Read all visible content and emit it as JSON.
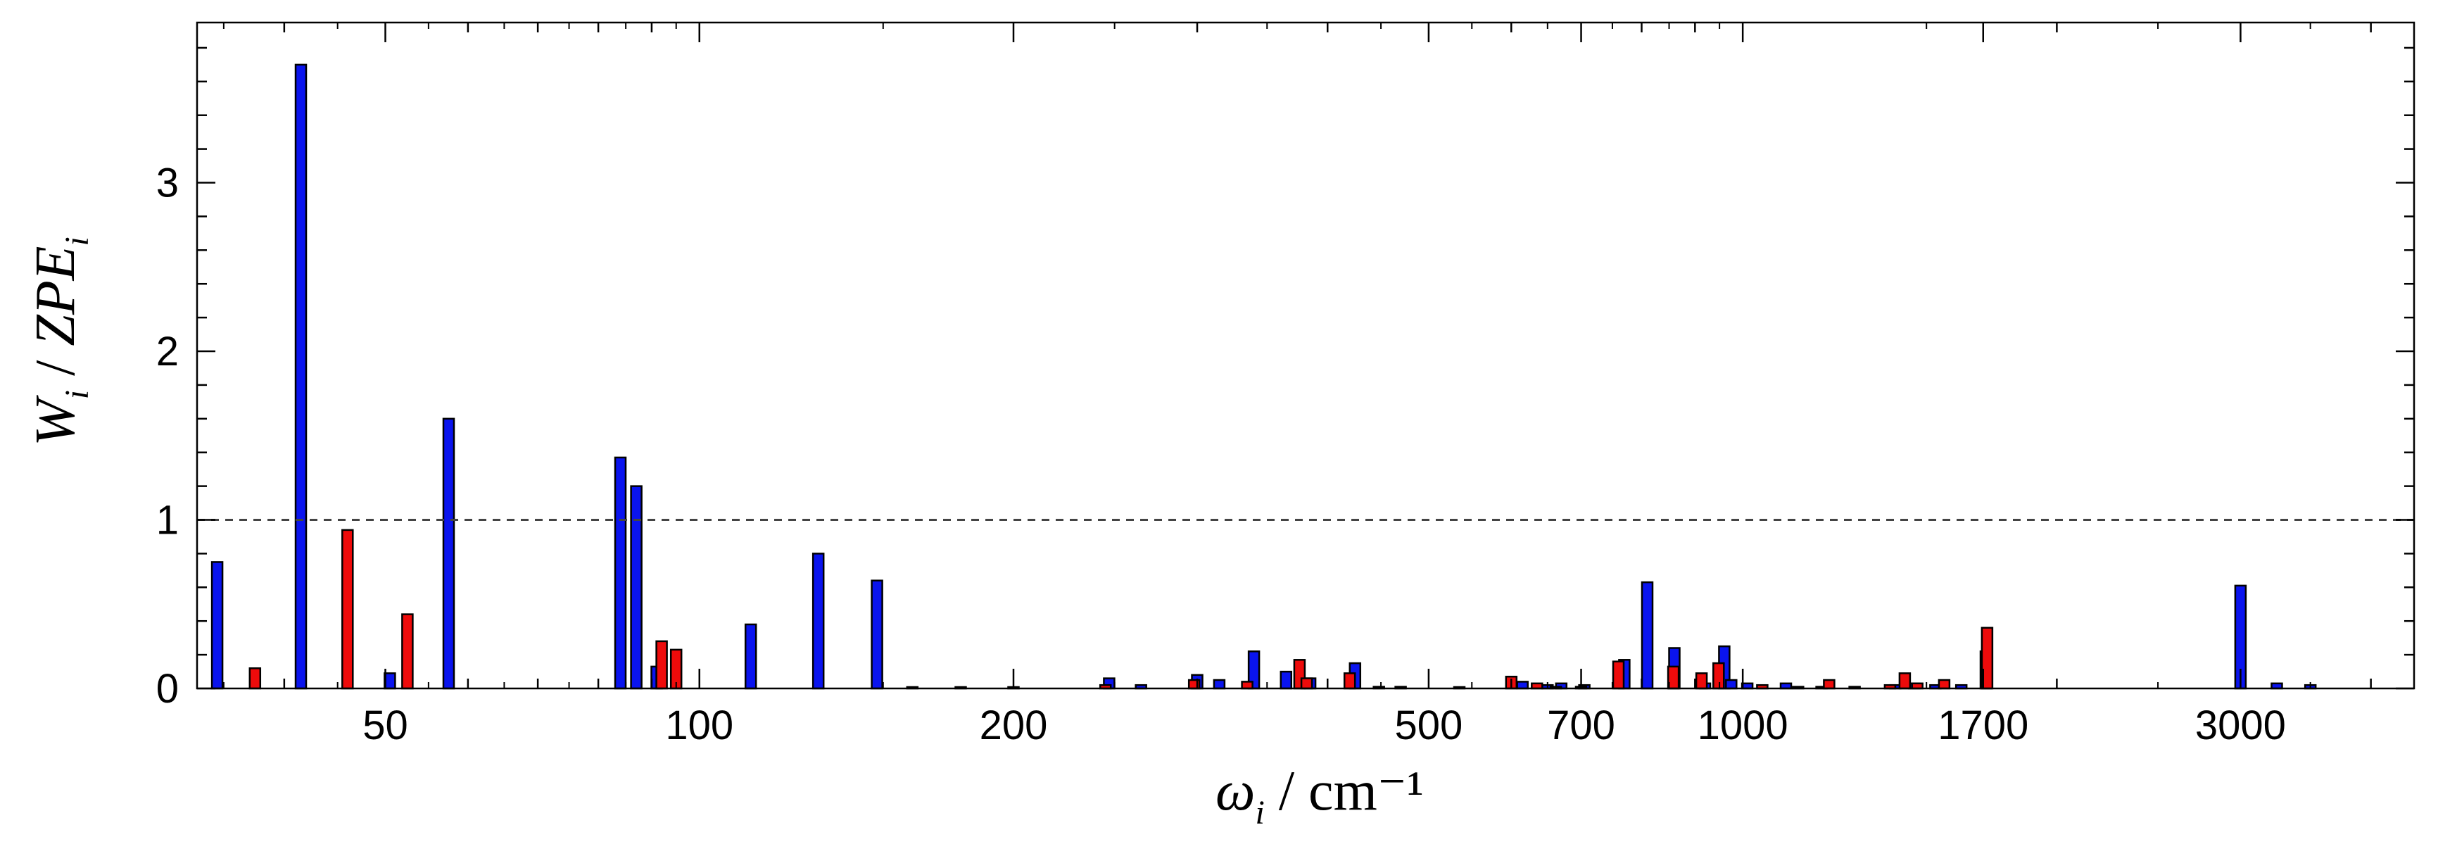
{
  "chart_data": {
    "type": "bar",
    "xscale": "log",
    "xlim": [
      33,
      4400
    ],
    "ylim": [
      0,
      3.95
    ],
    "xlabel": "ωi / cm⁻¹",
    "ylabel": "Wi / ZPEi",
    "grid": false,
    "legend": "none",
    "reference_line": {
      "y": 1,
      "style": "dashed",
      "color": "#444444"
    },
    "xticks": [
      50,
      100,
      200,
      500,
      700,
      1000,
      1700,
      3000
    ],
    "xtick_labels": [
      "50",
      "100",
      "200",
      "500",
      "700",
      "1000",
      "1700",
      "3000"
    ],
    "yticks": [
      0,
      1,
      2,
      3
    ],
    "ytick_labels": [
      "0",
      "1",
      "2",
      "3"
    ],
    "colors": {
      "blue": "#0a14ee",
      "red": "#ee0b0b",
      "outline": "#000000"
    },
    "series": [
      {
        "color": "blue",
        "x": [
          34.5,
          41.5,
          50.5,
          57.5,
          84,
          87,
          91,
          112,
          130,
          148,
          160,
          178,
          200,
          247,
          265,
          300,
          315,
          340,
          365,
          385,
          425,
          448,
          470,
          535,
          615,
          650,
          670,
          705,
          770,
          810,
          860,
          920,
          960,
          975,
          1010,
          1100,
          1130,
          1190,
          1280,
          1400,
          1460,
          1530,
          1620,
          1710,
          3000,
          3250,
          3500
        ],
        "values": [
          0.75,
          3.7,
          0.09,
          1.6,
          1.37,
          1.2,
          0.13,
          0.38,
          0.8,
          0.64,
          0.005,
          0.005,
          0.005,
          0.06,
          0.02,
          0.08,
          0.05,
          0.22,
          0.1,
          0.06,
          0.15,
          0.01,
          0.01,
          0.005,
          0.04,
          0.02,
          0.03,
          0.02,
          0.17,
          0.63,
          0.24,
          0.03,
          0.25,
          0.05,
          0.03,
          0.03,
          0.01,
          0.01,
          0.01,
          0.02,
          0.03,
          0.02,
          0.02,
          0.22,
          0.61,
          0.03,
          0.02
        ]
      },
      {
        "color": "red",
        "x": [
          37.5,
          46,
          52.5,
          92,
          95,
          245,
          298,
          335,
          376,
          382,
          420,
          600,
          635,
          662,
          700,
          760,
          858,
          913,
          948,
          1044,
          1210,
          1384,
          1430,
          1470,
          1560,
          1715
        ],
        "values": [
          0.12,
          0.94,
          0.44,
          0.28,
          0.23,
          0.02,
          0.05,
          0.04,
          0.17,
          0.06,
          0.09,
          0.07,
          0.03,
          0.01,
          0.01,
          0.16,
          0.13,
          0.09,
          0.15,
          0.02,
          0.05,
          0.02,
          0.09,
          0.03,
          0.05,
          0.36
        ]
      }
    ]
  }
}
